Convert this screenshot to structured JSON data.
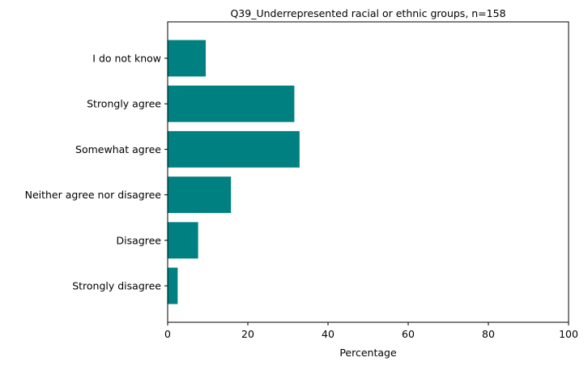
{
  "chart_data": {
    "type": "bar",
    "orientation": "horizontal",
    "title": "Q39_Underrepresented racial or ethnic groups, n=158",
    "xlabel": "Percentage",
    "ylabel": "",
    "xlim": [
      0,
      100
    ],
    "xticks": [
      0,
      20,
      40,
      60,
      80,
      100
    ],
    "categories": [
      "Strongly disagree",
      "Disagree",
      "Neither agree nor disagree",
      "Somewhat agree",
      "Strongly agree",
      "I do not know"
    ],
    "values": [
      2.5,
      7.6,
      15.8,
      32.9,
      31.6,
      9.5
    ],
    "bar_color": "#008080",
    "grid": false,
    "legend": "none"
  }
}
